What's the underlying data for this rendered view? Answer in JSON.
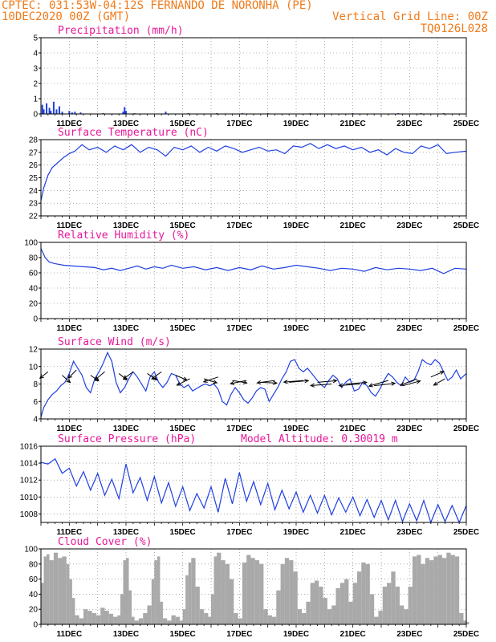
{
  "header": {
    "line1": "CPTEC:  031:53W-04:12S  FERNANDO DE NORONHA (PE)",
    "line2_left": "10DEC2020 00Z (GMT)",
    "line2_right": "Vertical Grid Line: 00Z",
    "line3_right": "TQ0126L028"
  },
  "colors": {
    "header_text": "#f07a1a",
    "panel_title": "#e8179a",
    "line": "#1f3fe0",
    "bars_precip": "#1f3fe0",
    "cloud_fill": "#a9a9a9",
    "wind_arrow": "#000000"
  },
  "chart_data": [
    {
      "type": "bar",
      "title": "Precipitation (mm/h)",
      "ylim": [
        0,
        5
      ],
      "yticks": [
        0,
        1,
        2,
        3,
        4,
        5
      ],
      "x_day_start": 10,
      "x_day_end": 25,
      "xtick_labels": [
        "11DEC",
        "13DEC",
        "15DEC",
        "17DEC",
        "19DEC",
        "21DEC",
        "23DEC",
        "25DEC"
      ],
      "x": [
        10.05,
        10.1,
        10.2,
        10.3,
        10.35,
        10.45,
        10.55,
        10.65,
        10.75,
        11.0,
        11.1,
        11.2,
        11.4,
        12.2,
        12.9,
        12.95,
        13.0,
        13.3,
        14.4,
        15.2,
        16.2,
        17.1,
        18.0,
        19.5,
        21.0,
        22.6,
        23.4,
        24.2
      ],
      "values": [
        0.6,
        0.3,
        0.7,
        0.4,
        0.2,
        0.8,
        0.3,
        0.5,
        0.15,
        0.2,
        0.1,
        0.15,
        0.1,
        0.05,
        0.15,
        0.45,
        0.2,
        0.05,
        0.15,
        0.05,
        0.05,
        0.05,
        0.05,
        0.05,
        0.05,
        0.05,
        0.05,
        0.05
      ]
    },
    {
      "type": "line",
      "title": "Surface Temperature (nC)",
      "ylim": [
        22,
        28
      ],
      "yticks": [
        22,
        23,
        24,
        25,
        26,
        27,
        28
      ],
      "x_day_start": 10,
      "x_day_end": 25,
      "xtick_labels": [
        "11DEC",
        "13DEC",
        "15DEC",
        "17DEC",
        "19DEC",
        "21DEC",
        "23DEC",
        "25DEC"
      ],
      "x": [
        10.0,
        10.1,
        10.25,
        10.4,
        10.6,
        10.8,
        11.0,
        11.2,
        11.45,
        11.7,
        12.0,
        12.3,
        12.6,
        12.9,
        13.2,
        13.5,
        13.8,
        14.1,
        14.4,
        14.7,
        15.0,
        15.3,
        15.6,
        15.9,
        16.2,
        16.5,
        16.8,
        17.1,
        17.4,
        17.7,
        18.0,
        18.3,
        18.6,
        18.9,
        19.2,
        19.5,
        19.8,
        20.1,
        20.4,
        20.7,
        21.0,
        21.3,
        21.6,
        21.9,
        22.2,
        22.5,
        22.8,
        23.1,
        23.4,
        23.7,
        24.0,
        24.3,
        24.6,
        25.0
      ],
      "values": [
        23.2,
        24.2,
        25.2,
        25.8,
        26.2,
        26.6,
        26.9,
        27.1,
        27.6,
        27.2,
        27.4,
        27.0,
        27.5,
        27.2,
        27.6,
        27.0,
        27.4,
        27.2,
        26.7,
        27.4,
        27.2,
        27.5,
        27.0,
        27.4,
        27.1,
        27.5,
        27.3,
        27.0,
        27.2,
        27.4,
        27.1,
        27.2,
        26.9,
        27.5,
        27.4,
        27.7,
        27.3,
        27.6,
        27.3,
        27.5,
        27.2,
        27.4,
        27.0,
        27.2,
        26.8,
        27.3,
        27.0,
        26.9,
        27.5,
        27.3,
        27.6,
        26.9,
        27.0,
        27.1
      ]
    },
    {
      "type": "line",
      "title": "Relative Humidity (%)",
      "ylim": [
        0,
        100
      ],
      "yticks": [
        0,
        20,
        40,
        60,
        80,
        100
      ],
      "x_day_start": 10,
      "x_day_end": 25,
      "xtick_labels": [
        "11DEC",
        "13DEC",
        "15DEC",
        "17DEC",
        "19DEC",
        "21DEC",
        "23DEC",
        "25DEC"
      ],
      "x": [
        10.0,
        10.15,
        10.3,
        10.5,
        10.8,
        11.1,
        11.5,
        11.9,
        12.2,
        12.5,
        12.8,
        13.1,
        13.4,
        13.7,
        14.0,
        14.3,
        14.6,
        15.0,
        15.4,
        15.8,
        16.2,
        16.6,
        17.0,
        17.4,
        17.8,
        18.2,
        18.6,
        19.0,
        19.4,
        19.8,
        20.2,
        20.6,
        21.0,
        21.4,
        21.8,
        22.2,
        22.6,
        23.0,
        23.4,
        23.8,
        24.2,
        24.6,
        25.0
      ],
      "values": [
        92,
        80,
        74,
        72,
        70,
        69,
        68,
        67,
        64,
        66,
        63,
        66,
        69,
        65,
        68,
        66,
        70,
        66,
        68,
        64,
        67,
        63,
        67,
        64,
        69,
        65,
        67,
        70,
        68,
        66,
        63,
        66,
        65,
        62,
        67,
        64,
        66,
        65,
        63,
        66,
        59,
        66,
        65
      ]
    },
    {
      "type": "line",
      "title": "Surface Wind (m/s)",
      "ylim": [
        4,
        12
      ],
      "yticks": [
        4,
        6,
        8,
        10,
        12
      ],
      "x_day_start": 10,
      "x_day_end": 25,
      "xtick_labels": [
        "11DEC",
        "13DEC",
        "15DEC",
        "17DEC",
        "19DEC",
        "21DEC",
        "23DEC",
        "25DEC"
      ],
      "x": [
        10.0,
        10.1,
        10.25,
        10.4,
        10.55,
        10.7,
        10.85,
        11.0,
        11.15,
        11.3,
        11.45,
        11.6,
        11.75,
        11.9,
        12.05,
        12.2,
        12.35,
        12.5,
        12.65,
        12.8,
        12.95,
        13.1,
        13.25,
        13.4,
        13.55,
        13.7,
        13.85,
        14.0,
        14.15,
        14.3,
        14.45,
        14.6,
        14.75,
        14.9,
        15.05,
        15.2,
        15.35,
        15.5,
        15.65,
        15.8,
        15.95,
        16.1,
        16.25,
        16.4,
        16.55,
        16.7,
        16.85,
        17.0,
        17.15,
        17.3,
        17.45,
        17.6,
        17.75,
        17.9,
        18.05,
        18.2,
        18.35,
        18.5,
        18.65,
        18.8,
        18.95,
        19.1,
        19.25,
        19.4,
        19.55,
        19.7,
        19.85,
        20.0,
        20.15,
        20.3,
        20.45,
        20.6,
        20.75,
        20.9,
        21.05,
        21.2,
        21.35,
        21.5,
        21.65,
        21.8,
        21.95,
        22.1,
        22.25,
        22.4,
        22.55,
        22.7,
        22.85,
        23.0,
        23.15,
        23.3,
        23.45,
        23.6,
        23.75,
        23.9,
        24.05,
        24.2,
        24.35,
        24.5,
        24.65,
        24.8,
        25.0
      ],
      "values": [
        4.2,
        5.3,
        6.2,
        6.8,
        7.2,
        7.8,
        8.2,
        9.2,
        10.6,
        9.8,
        9.0,
        7.6,
        7.0,
        8.6,
        9.4,
        10.4,
        11.6,
        10.6,
        8.2,
        7.0,
        7.6,
        8.6,
        9.4,
        8.8,
        8.0,
        7.2,
        8.8,
        9.4,
        8.2,
        7.6,
        8.2,
        9.2,
        9.0,
        8.0,
        7.6,
        7.9,
        7.2,
        7.5,
        7.8,
        8.0,
        7.8,
        8.0,
        7.4,
        6.0,
        5.6,
        6.8,
        7.6,
        7.0,
        6.2,
        5.8,
        6.4,
        7.2,
        7.6,
        7.4,
        6.0,
        6.8,
        7.6,
        8.6,
        9.4,
        10.6,
        10.8,
        9.8,
        9.4,
        9.8,
        9.2,
        8.6,
        8.0,
        7.6,
        8.4,
        9.0,
        8.6,
        7.6,
        8.2,
        8.6,
        7.2,
        7.4,
        8.2,
        7.8,
        7.0,
        6.6,
        7.4,
        8.4,
        9.2,
        8.8,
        8.2,
        7.8,
        8.8,
        8.2,
        8.4,
        9.4,
        10.8,
        10.4,
        10.2,
        10.8,
        10.4,
        9.4,
        8.4,
        8.8,
        9.6,
        8.6,
        9.2
      ]
    },
    {
      "type": "line",
      "title": "Surface Pressure (hPa)",
      "annotation": "Model Altitude: 0.30019 m",
      "ylim": [
        1007,
        1016
      ],
      "yticks": [
        1008,
        1010,
        1012,
        1014,
        1016
      ],
      "x_day_start": 10,
      "x_day_end": 25,
      "xtick_labels": [
        "11DEC",
        "13DEC",
        "15DEC",
        "17DEC",
        "19DEC",
        "21DEC",
        "23DEC",
        "25DEC"
      ],
      "x": [
        10.0,
        10.25,
        10.5,
        10.75,
        11.0,
        11.25,
        11.5,
        11.75,
        12.0,
        12.25,
        12.5,
        12.75,
        13.0,
        13.25,
        13.5,
        13.75,
        14.0,
        14.25,
        14.5,
        14.75,
        15.0,
        15.25,
        15.5,
        15.75,
        16.0,
        16.25,
        16.5,
        16.75,
        17.0,
        17.25,
        17.5,
        17.75,
        18.0,
        18.25,
        18.5,
        18.75,
        19.0,
        19.25,
        19.5,
        19.75,
        20.0,
        20.25,
        20.5,
        20.75,
        21.0,
        21.25,
        21.5,
        21.75,
        22.0,
        22.25,
        22.5,
        22.75,
        23.0,
        23.25,
        23.5,
        23.75,
        24.0,
        24.25,
        24.5,
        24.75,
        25.0
      ],
      "values": [
        1014.1,
        1013.9,
        1014.5,
        1012.8,
        1013.4,
        1011.3,
        1013.0,
        1010.8,
        1012.8,
        1010.2,
        1012.1,
        1009.8,
        1013.9,
        1010.5,
        1012.3,
        1009.6,
        1012.4,
        1009.3,
        1011.7,
        1008.9,
        1011.2,
        1008.4,
        1010.4,
        1008.7,
        1011.2,
        1008.2,
        1012.2,
        1009.2,
        1012.9,
        1009.5,
        1011.8,
        1009.1,
        1011.6,
        1008.5,
        1010.8,
        1008.6,
        1010.6,
        1008.2,
        1010.2,
        1008.1,
        1010.2,
        1007.9,
        1009.9,
        1008.2,
        1010.0,
        1007.8,
        1009.7,
        1007.6,
        1009.6,
        1007.3,
        1009.6,
        1007.1,
        1009.2,
        1007.2,
        1009.6,
        1007.0,
        1009.1,
        1007.1,
        1009.0,
        1007.0,
        1009.0
      ]
    },
    {
      "type": "area",
      "title": "Cloud Cover (%)",
      "ylim": [
        0,
        100
      ],
      "yticks": [
        0,
        20,
        40,
        60,
        80,
        100
      ],
      "x_day_start": 10,
      "x_day_end": 25,
      "xtick_labels": [
        "11DEC",
        "13DEC",
        "15DEC",
        "17DEC",
        "19DEC",
        "21DEC",
        "23DEC",
        "25DEC"
      ],
      "x": [
        10.0,
        10.1,
        10.2,
        10.3,
        10.45,
        10.6,
        10.75,
        10.9,
        11.0,
        11.1,
        11.2,
        11.35,
        11.5,
        11.65,
        11.8,
        11.95,
        12.1,
        12.25,
        12.4,
        12.55,
        12.7,
        12.8,
        12.9,
        13.0,
        13.1,
        13.2,
        13.3,
        13.45,
        13.6,
        13.75,
        13.9,
        14.0,
        14.1,
        14.2,
        14.3,
        14.45,
        14.6,
        14.75,
        14.9,
        15.0,
        15.1,
        15.2,
        15.3,
        15.45,
        15.6,
        15.75,
        15.9,
        16.0,
        16.1,
        16.2,
        16.35,
        16.5,
        16.65,
        16.8,
        16.95,
        17.1,
        17.25,
        17.4,
        17.55,
        17.7,
        17.85,
        18.0,
        18.15,
        18.3,
        18.45,
        18.6,
        18.75,
        18.9,
        19.05,
        19.2,
        19.35,
        19.5,
        19.65,
        19.8,
        19.95,
        20.1,
        20.25,
        20.4,
        20.55,
        20.7,
        20.85,
        21.0,
        21.15,
        21.3,
        21.45,
        21.6,
        21.75,
        21.9,
        22.05,
        22.2,
        22.35,
        22.5,
        22.65,
        22.8,
        22.95,
        23.1,
        23.25,
        23.4,
        23.55,
        23.7,
        23.85,
        24.0,
        24.15,
        24.3,
        24.45,
        24.6,
        24.75,
        24.9,
        25.0
      ],
      "values": [
        55,
        90,
        93,
        85,
        95,
        88,
        90,
        80,
        60,
        35,
        12,
        8,
        20,
        18,
        15,
        12,
        22,
        18,
        14,
        10,
        12,
        40,
        85,
        88,
        45,
        10,
        5,
        8,
        15,
        25,
        60,
        85,
        90,
        30,
        8,
        5,
        12,
        10,
        5,
        20,
        65,
        82,
        88,
        50,
        20,
        15,
        10,
        40,
        90,
        95,
        85,
        80,
        60,
        15,
        8,
        82,
        92,
        88,
        85,
        80,
        20,
        12,
        10,
        45,
        80,
        88,
        85,
        70,
        20,
        15,
        30,
        55,
        58,
        50,
        35,
        20,
        25,
        48,
        55,
        60,
        30,
        55,
        70,
        82,
        80,
        40,
        10,
        18,
        50,
        55,
        70,
        50,
        25,
        20,
        50,
        90,
        92,
        80,
        88,
        85,
        90,
        92,
        88,
        95,
        92,
        90,
        15,
        5,
        3
      ]
    }
  ],
  "wind_arrows": [
    {
      "day": 10.25,
      "y": 9.4,
      "dx": -10,
      "dy": 8
    },
    {
      "day": 10.75,
      "y": 9.0,
      "dx": 10,
      "dy": 9
    },
    {
      "day": 11.25,
      "y": 9.6,
      "dx": -10,
      "dy": 10
    },
    {
      "day": 11.75,
      "y": 9.0,
      "dx": 10,
      "dy": 7
    },
    {
      "day": 12.25,
      "y": 9.4,
      "dx": -12,
      "dy": 10
    },
    {
      "day": 12.75,
      "y": 9.2,
      "dx": 10,
      "dy": 8
    },
    {
      "day": 13.25,
      "y": 9.4,
      "dx": -12,
      "dy": 9
    },
    {
      "day": 13.75,
      "y": 9.2,
      "dx": 12,
      "dy": 8
    },
    {
      "day": 14.25,
      "y": 9.4,
      "dx": -12,
      "dy": 9
    },
    {
      "day": 14.75,
      "y": 9.0,
      "dx": 14,
      "dy": 6
    },
    {
      "day": 15.25,
      "y": 8.6,
      "dx": -16,
      "dy": 8
    },
    {
      "day": 15.75,
      "y": 8.6,
      "dx": 16,
      "dy": 5
    },
    {
      "day": 16.25,
      "y": 8.8,
      "dx": -18,
      "dy": 6
    },
    {
      "day": 16.75,
      "y": 8.4,
      "dx": 18,
      "dy": 3
    },
    {
      "day": 17.25,
      "y": 8.4,
      "dx": -20,
      "dy": 4
    },
    {
      "day": 17.75,
      "y": 8.2,
      "dx": 20,
      "dy": 1
    },
    {
      "day": 18.25,
      "y": 8.4,
      "dx": -22,
      "dy": 3
    },
    {
      "day": 18.75,
      "y": 8.2,
      "dx": 24,
      "dy": -2
    },
    {
      "day": 19.25,
      "y": 8.4,
      "dx": -24,
      "dy": 2
    },
    {
      "day": 19.75,
      "y": 8.2,
      "dx": 24,
      "dy": -2
    },
    {
      "day": 20.25,
      "y": 8.0,
      "dx": -26,
      "dy": 2
    },
    {
      "day": 20.75,
      "y": 8.0,
      "dx": 26,
      "dy": -2
    },
    {
      "day": 21.25,
      "y": 8.0,
      "dx": -26,
      "dy": 2
    },
    {
      "day": 21.75,
      "y": 7.8,
      "dx": 26,
      "dy": -3
    },
    {
      "day": 22.25,
      "y": 8.4,
      "dx": -24,
      "dy": 7
    },
    {
      "day": 22.75,
      "y": 7.8,
      "dx": 22,
      "dy": -6
    },
    {
      "day": 23.25,
      "y": 8.6,
      "dx": -20,
      "dy": 8
    },
    {
      "day": 23.75,
      "y": 8.8,
      "dx": 16,
      "dy": -7
    },
    {
      "day": 24.25,
      "y": 8.6,
      "dx": -14,
      "dy": 8
    }
  ]
}
